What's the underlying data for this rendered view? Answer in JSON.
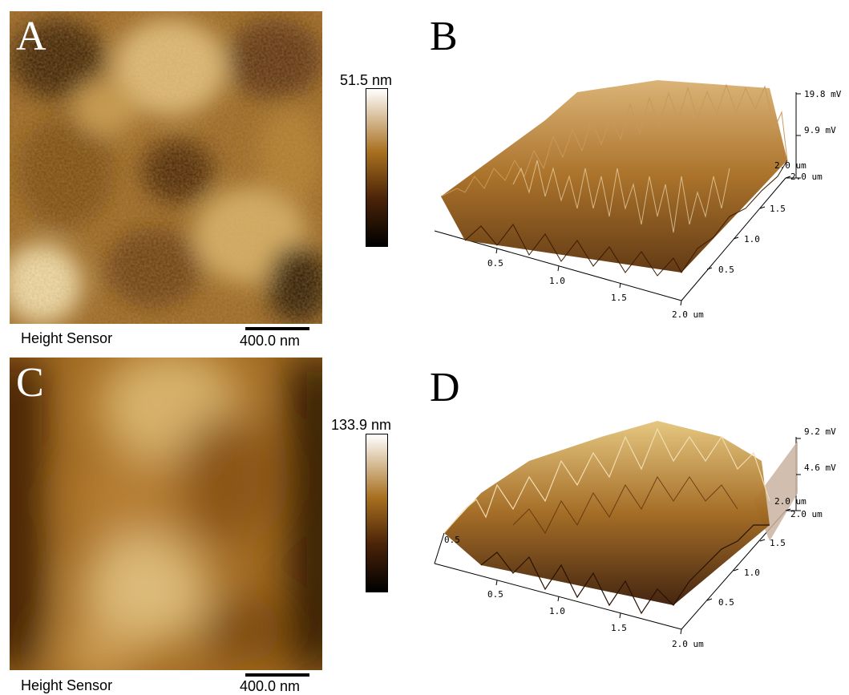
{
  "panels": [
    {
      "letter": "A",
      "sensor_label": "Height Sensor",
      "scale_bar": "400.0 nm",
      "colorbar_max": "51.5 nm"
    },
    {
      "letter": "B",
      "z_ticks": [
        "19.8 mV",
        "9.9 mV"
      ],
      "y_ticks": [
        "2.0 um",
        "1.5",
        "1.0",
        "0.5"
      ],
      "x_ticks": [
        "0.5",
        "1.0",
        "1.5",
        "2.0 um"
      ],
      "x_top": "2.0 um"
    },
    {
      "letter": "C",
      "sensor_label": "Height Sensor",
      "scale_bar": "400.0 nm",
      "colorbar_max": "133.9 nm"
    },
    {
      "letter": "D",
      "z_ticks": [
        "9.2 mV",
        "4.6 mV"
      ],
      "y_ticks": [
        "2.0 um",
        "1.5",
        "1.0",
        "0.5"
      ],
      "x_ticks": [
        "0.5",
        "1.0",
        "1.5",
        "2.0 um"
      ],
      "x_top": "2.0 um",
      "left_axis_tick": "0.5"
    }
  ],
  "colors": {
    "afm_dark": "#1a0a02",
    "afm_mid": "#8a5410",
    "afm_light": "#f6ecd2"
  }
}
